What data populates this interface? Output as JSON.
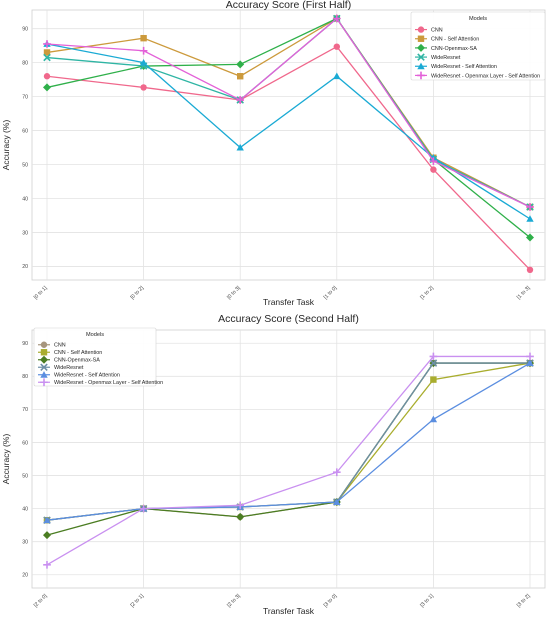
{
  "chart_data": [
    {
      "type": "line",
      "title": "Accuracy Score (First Half)",
      "xlabel": "Transfer Task",
      "ylabel": "Accuracy (%)",
      "categories": [
        "[0 to 1]",
        "[0 to 2]",
        "[0 to 3]",
        "[1 to 0]",
        "[1 to 2]",
        "[1 to 3]"
      ],
      "yticks": [
        20,
        30,
        40,
        50,
        60,
        70,
        80,
        90
      ],
      "ylim": [
        16,
        95.5
      ],
      "grid": true,
      "legend": {
        "title": "Models",
        "placement": "top-right"
      },
      "series": [
        {
          "name": "CNN",
          "color": "#f0688c",
          "marker": "circle",
          "values": [
            76,
            72.7,
            69,
            84.7,
            48.5,
            19
          ]
        },
        {
          "name": "CNN - Self Attention",
          "color": "#cc9a3c",
          "marker": "square",
          "values": [
            83,
            87.2,
            76,
            93,
            52,
            37.5
          ]
        },
        {
          "name": "CNN-Openmax-SA",
          "color": "#2fb04a",
          "marker": "diamond",
          "values": [
            72.7,
            79,
            79.5,
            93,
            51.5,
            28.5
          ]
        },
        {
          "name": "WideResnet",
          "color": "#2fb5a4",
          "marker": "x",
          "values": [
            81.5,
            79,
            69,
            93,
            51.5,
            37.5
          ]
        },
        {
          "name": "WideResnet - Self Attention",
          "color": "#1aaad4",
          "marker": "triangle",
          "values": [
            85.5,
            80,
            55,
            76,
            52,
            34
          ]
        },
        {
          "name": "WideResnet - Openmax Layer - Self Attention",
          "color": "#e361d8",
          "marker": "plus",
          "values": [
            85.5,
            83.5,
            69,
            93,
            51,
            37.5
          ]
        }
      ]
    },
    {
      "type": "line",
      "title": "Accuracy Score (Second Half)",
      "xlabel": "Transfer Task",
      "ylabel": "Accuracy (%)",
      "categories": [
        "[2 to 0]",
        "[2 to 1]",
        "[2 to 3]",
        "[3 to 0]",
        "[3 to 1]",
        "[3 to 2]"
      ],
      "yticks": [
        20,
        30,
        40,
        50,
        60,
        70,
        80,
        90
      ],
      "ylim": [
        16,
        94
      ],
      "grid": true,
      "legend": {
        "title": "Models",
        "placement": "top-left"
      },
      "series": [
        {
          "name": "CNN",
          "color": "#a7967e",
          "marker": "circle",
          "values": [
            36.5,
            40,
            37.5,
            42,
            84,
            84
          ]
        },
        {
          "name": "CNN - Self Attention",
          "color": "#a9ad2e",
          "marker": "square",
          "values": [
            36.5,
            40,
            40.5,
            42,
            79,
            84
          ]
        },
        {
          "name": "CNN-Openmax-SA",
          "color": "#4b7d22",
          "marker": "diamond",
          "values": [
            32,
            40,
            37.5,
            42,
            84,
            84
          ]
        },
        {
          "name": "WideResnet",
          "color": "#6d8fa6",
          "marker": "x",
          "values": [
            36.5,
            40,
            40.5,
            42,
            84,
            84
          ]
        },
        {
          "name": "WideResnet - Self Attention",
          "color": "#5b8ee0",
          "marker": "triangle",
          "values": [
            36.5,
            40,
            40.5,
            42,
            67,
            84
          ]
        },
        {
          "name": "WideResnet - Openmax Layer - Self Attention",
          "color": "#c990f0",
          "marker": "plus",
          "values": [
            23,
            40,
            41,
            51,
            86,
            86
          ]
        }
      ]
    }
  ]
}
